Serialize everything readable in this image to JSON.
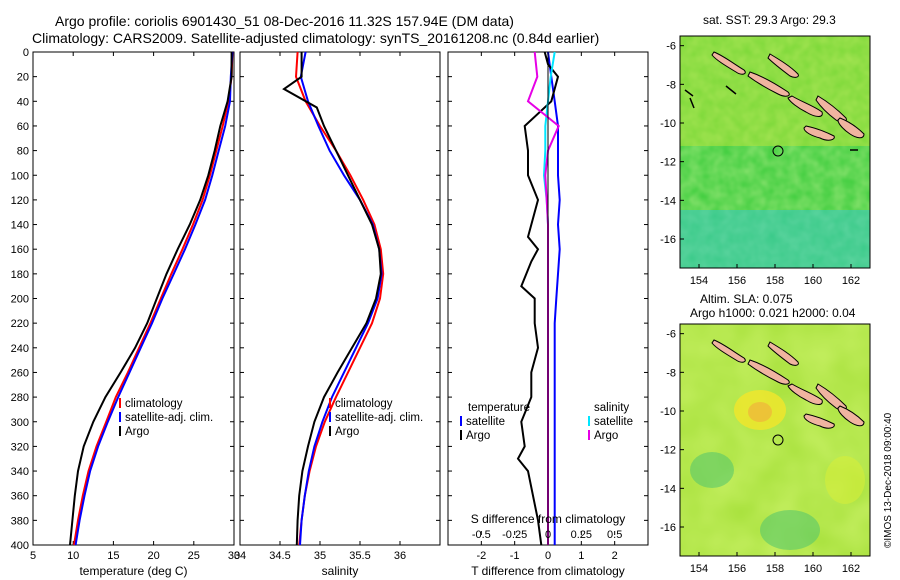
{
  "title": {
    "line1": "Argo profile: coriolis 6901430_51 08-Dec-2016 11.32S 157.94E (DM data)",
    "line2": "Climatology: CARS2009. Satellite-adjusted climatology: synTS_20161208.nc (0.84d earlier)"
  },
  "credit": "©IMOS 13-Dec-2018 09:00:40",
  "chart_data": [
    {
      "type": "line",
      "id": "temperature",
      "xlabel": "temperature (deg C)",
      "ylabel": "",
      "xlim": [
        5,
        30
      ],
      "ylim": [
        400,
        0
      ],
      "xticks": [
        "5",
        "10",
        "15",
        "20",
        "25",
        "30"
      ],
      "yticks": [
        "0",
        "20",
        "40",
        "60",
        "80",
        "100",
        "120",
        "140",
        "160",
        "180",
        "200",
        "220",
        "240",
        "260",
        "280",
        "300",
        "320",
        "340",
        "360",
        "380",
        "400"
      ],
      "legend": [
        "climatology",
        "satellite-adj. clim.",
        "Argo"
      ],
      "series": [
        {
          "name": "climatology",
          "color": "#ff0000",
          "points": [
            [
              29.8,
              0
            ],
            [
              29.7,
              20
            ],
            [
              29.3,
              40
            ],
            [
              28.6,
              60
            ],
            [
              27.8,
              80
            ],
            [
              27.0,
              100
            ],
            [
              26.1,
              120
            ],
            [
              24.9,
              140
            ],
            [
              23.6,
              160
            ],
            [
              22.2,
              180
            ],
            [
              20.9,
              200
            ],
            [
              19.6,
              220
            ],
            [
              18.2,
              240
            ],
            [
              16.8,
              260
            ],
            [
              15.3,
              280
            ],
            [
              14.1,
              300
            ],
            [
              12.9,
              320
            ],
            [
              11.9,
              340
            ],
            [
              11.2,
              360
            ],
            [
              10.6,
              380
            ],
            [
              10.1,
              400
            ]
          ]
        },
        {
          "name": "satellite-adj. clim.",
          "color": "#0000ff",
          "points": [
            [
              29.8,
              0
            ],
            [
              29.6,
              20
            ],
            [
              29.5,
              40
            ],
            [
              28.9,
              60
            ],
            [
              28.1,
              80
            ],
            [
              27.3,
              100
            ],
            [
              26.4,
              120
            ],
            [
              25.2,
              140
            ],
            [
              23.9,
              160
            ],
            [
              22.5,
              180
            ],
            [
              21.1,
              200
            ],
            [
              19.8,
              220
            ],
            [
              18.4,
              240
            ],
            [
              17.0,
              260
            ],
            [
              15.6,
              280
            ],
            [
              14.3,
              300
            ],
            [
              13.1,
              320
            ],
            [
              12.1,
              340
            ],
            [
              11.4,
              360
            ],
            [
              10.8,
              380
            ],
            [
              10.3,
              400
            ]
          ]
        },
        {
          "name": "Argo",
          "color": "#000000",
          "points": [
            [
              29.7,
              0
            ],
            [
              29.7,
              20
            ],
            [
              29.2,
              40
            ],
            [
              28.3,
              60
            ],
            [
              27.6,
              80
            ],
            [
              26.8,
              100
            ],
            [
              25.8,
              120
            ],
            [
              24.5,
              140
            ],
            [
              23.0,
              160
            ],
            [
              21.6,
              180
            ],
            [
              20.4,
              200
            ],
            [
              19.2,
              220
            ],
            [
              17.7,
              240
            ],
            [
              15.9,
              260
            ],
            [
              14.0,
              280
            ],
            [
              12.5,
              300
            ],
            [
              11.3,
              320
            ],
            [
              10.6,
              340
            ],
            [
              10.2,
              360
            ],
            [
              9.9,
              380
            ],
            [
              9.6,
              400
            ]
          ]
        }
      ]
    },
    {
      "type": "line",
      "id": "salinity",
      "xlabel": "salinity",
      "ylabel": "",
      "xlim": [
        34,
        36.5
      ],
      "ylim": [
        400,
        0
      ],
      "xticks": [
        "34",
        "34.5",
        "35",
        "35.5",
        "36"
      ],
      "legend": [
        "climatology",
        "satellite-adj. clim.",
        "Argo"
      ],
      "series": [
        {
          "name": "climatology",
          "color": "#ff0000",
          "points": [
            [
              34.72,
              0
            ],
            [
              34.7,
              20
            ],
            [
              34.82,
              40
            ],
            [
              35.0,
              60
            ],
            [
              35.2,
              80
            ],
            [
              35.38,
              100
            ],
            [
              35.54,
              120
            ],
            [
              35.68,
              140
            ],
            [
              35.76,
              160
            ],
            [
              35.79,
              180
            ],
            [
              35.75,
              200
            ],
            [
              35.65,
              220
            ],
            [
              35.5,
              240
            ],
            [
              35.35,
              260
            ],
            [
              35.2,
              280
            ],
            [
              35.06,
              300
            ],
            [
              34.95,
              320
            ],
            [
              34.87,
              340
            ],
            [
              34.81,
              360
            ],
            [
              34.77,
              380
            ],
            [
              34.74,
              400
            ]
          ]
        },
        {
          "name": "satellite-adj. clim.",
          "color": "#0000ff",
          "points": [
            [
              34.82,
              0
            ],
            [
              34.76,
              20
            ],
            [
              34.85,
              40
            ],
            [
              34.98,
              60
            ],
            [
              35.12,
              80
            ],
            [
              35.3,
              100
            ],
            [
              35.5,
              120
            ],
            [
              35.66,
              140
            ],
            [
              35.74,
              160
            ],
            [
              35.77,
              180
            ],
            [
              35.72,
              200
            ],
            [
              35.6,
              220
            ],
            [
              35.45,
              240
            ],
            [
              35.3,
              260
            ],
            [
              35.15,
              280
            ],
            [
              35.03,
              300
            ],
            [
              34.93,
              320
            ],
            [
              34.86,
              340
            ],
            [
              34.81,
              360
            ],
            [
              34.77,
              380
            ],
            [
              34.75,
              400
            ]
          ]
        },
        {
          "name": "Argo",
          "color": "#000000",
          "points": [
            [
              34.77,
              0
            ],
            [
              34.77,
              20
            ],
            [
              34.55,
              30
            ],
            [
              34.96,
              45
            ],
            [
              35.05,
              60
            ],
            [
              35.2,
              80
            ],
            [
              35.35,
              100
            ],
            [
              35.5,
              120
            ],
            [
              35.65,
              140
            ],
            [
              35.74,
              160
            ],
            [
              35.76,
              180
            ],
            [
              35.7,
              200
            ],
            [
              35.58,
              220
            ],
            [
              35.4,
              240
            ],
            [
              35.22,
              260
            ],
            [
              35.05,
              280
            ],
            [
              34.93,
              300
            ],
            [
              34.85,
              320
            ],
            [
              34.78,
              340
            ],
            [
              34.74,
              360
            ],
            [
              34.72,
              380
            ],
            [
              34.71,
              400
            ]
          ]
        }
      ]
    },
    {
      "type": "line",
      "id": "differences",
      "xlabel": "T difference from climatology",
      "xlim": [
        -3,
        3
      ],
      "ylim": [
        400,
        0
      ],
      "xticks": [
        "-2",
        "-1",
        "0",
        "1",
        "2"
      ],
      "s_axis_title": "S difference from climatology",
      "s_xticks": [
        "-0.5",
        "-0.25",
        "0",
        "0.25",
        "0.5"
      ],
      "s_xlim": [
        -0.75,
        0.75
      ],
      "legend_temperature_title": "temperature",
      "legend_salinity_title": "salinity",
      "legend": [
        "satellite",
        "Argo",
        "satellite",
        "Argo"
      ],
      "series": [
        {
          "name": "temperature satellite",
          "color": "#0000ff",
          "axis": "T",
          "points": [
            [
              0.0,
              0
            ],
            [
              0.1,
              20
            ],
            [
              0.2,
              40
            ],
            [
              0.3,
              60
            ],
            [
              0.3,
              80
            ],
            [
              0.3,
              100
            ],
            [
              0.35,
              120
            ],
            [
              0.3,
              140
            ],
            [
              0.35,
              160
            ],
            [
              0.3,
              180
            ],
            [
              0.25,
              200
            ],
            [
              0.2,
              220
            ],
            [
              0.2,
              240
            ],
            [
              0.2,
              260
            ],
            [
              0.2,
              280
            ],
            [
              0.2,
              300
            ],
            [
              0.2,
              320
            ],
            [
              0.2,
              340
            ],
            [
              0.2,
              360
            ],
            [
              0.2,
              380
            ],
            [
              0.2,
              400
            ]
          ]
        },
        {
          "name": "temperature Argo",
          "color": "#000000",
          "axis": "T",
          "points": [
            [
              -0.1,
              0
            ],
            [
              0.0,
              10
            ],
            [
              0.3,
              20
            ],
            [
              0.1,
              40
            ],
            [
              -0.7,
              60
            ],
            [
              -0.6,
              80
            ],
            [
              -0.6,
              100
            ],
            [
              -0.3,
              120
            ],
            [
              -0.6,
              150
            ],
            [
              -0.3,
              160
            ],
            [
              -0.5,
              170
            ],
            [
              -0.8,
              190
            ],
            [
              -0.4,
              200
            ],
            [
              -0.4,
              220
            ],
            [
              -0.3,
              240
            ],
            [
              -0.5,
              260
            ],
            [
              -0.5,
              280
            ],
            [
              -0.8,
              300
            ],
            [
              -0.7,
              320
            ],
            [
              -0.9,
              330
            ],
            [
              -0.6,
              340
            ],
            [
              -0.3,
              380
            ],
            [
              -0.2,
              400
            ]
          ]
        },
        {
          "name": "salinity satellite",
          "color": "#00e6ff",
          "axis": "S",
          "points": [
            [
              0.05,
              0
            ],
            [
              0.02,
              20
            ],
            [
              0.0,
              40
            ],
            [
              -0.02,
              60
            ],
            [
              -0.02,
              80
            ],
            [
              -0.03,
              100
            ],
            [
              -0.01,
              120
            ],
            [
              0.0,
              140
            ],
            [
              0.0,
              160
            ],
            [
              0.0,
              180
            ],
            [
              0.0,
              200
            ],
            [
              0.0,
              220
            ],
            [
              0.0,
              240
            ],
            [
              0.0,
              260
            ],
            [
              0.0,
              280
            ],
            [
              0.0,
              300
            ],
            [
              0.0,
              320
            ],
            [
              0.0,
              340
            ],
            [
              0.0,
              360
            ],
            [
              0.0,
              380
            ],
            [
              0.0,
              400
            ]
          ]
        },
        {
          "name": "salinity Argo",
          "color": "#e600e6",
          "axis": "S",
          "points": [
            [
              -0.1,
              0
            ],
            [
              -0.08,
              20
            ],
            [
              -0.15,
              40
            ],
            [
              0.08,
              60
            ],
            [
              0.0,
              80
            ],
            [
              -0.02,
              100
            ],
            [
              -0.01,
              120
            ],
            [
              0.0,
              140
            ],
            [
              0.0,
              160
            ],
            [
              0.0,
              180
            ],
            [
              0.0,
              200
            ],
            [
              0.0,
              220
            ],
            [
              0.0,
              240
            ],
            [
              0.0,
              260
            ],
            [
              0.0,
              280
            ],
            [
              0.0,
              300
            ],
            [
              0.0,
              320
            ],
            [
              0.0,
              340
            ],
            [
              0.0,
              360
            ],
            [
              0.0,
              380
            ],
            [
              0.0,
              400
            ]
          ]
        }
      ]
    },
    {
      "type": "heatmap",
      "id": "sst-map",
      "title": "sat. SST: 29.3 Argo: 29.3",
      "xticks": [
        "154",
        "156",
        "158",
        "160",
        "162"
      ],
      "yticks": [
        "-6",
        "-8",
        "-10",
        "-12",
        "-14",
        "-16"
      ],
      "xlim": [
        153,
        163
      ],
      "ylim": [
        -17.5,
        -5.5
      ],
      "argo_position": [
        157.94,
        -11.32
      ]
    },
    {
      "type": "heatmap",
      "id": "sla-map",
      "title_line1": "Altim. SLA: 0.075",
      "title_line2": "Argo h1000: 0.021 h2000: 0.04",
      "xticks": [
        "154",
        "156",
        "158",
        "160",
        "162"
      ],
      "yticks": [
        "-6",
        "-8",
        "-10",
        "-12",
        "-14",
        "-16"
      ],
      "xlim": [
        153,
        163
      ],
      "ylim": [
        -17.5,
        -5.5
      ],
      "argo_position": [
        157.94,
        -11.32
      ]
    }
  ]
}
